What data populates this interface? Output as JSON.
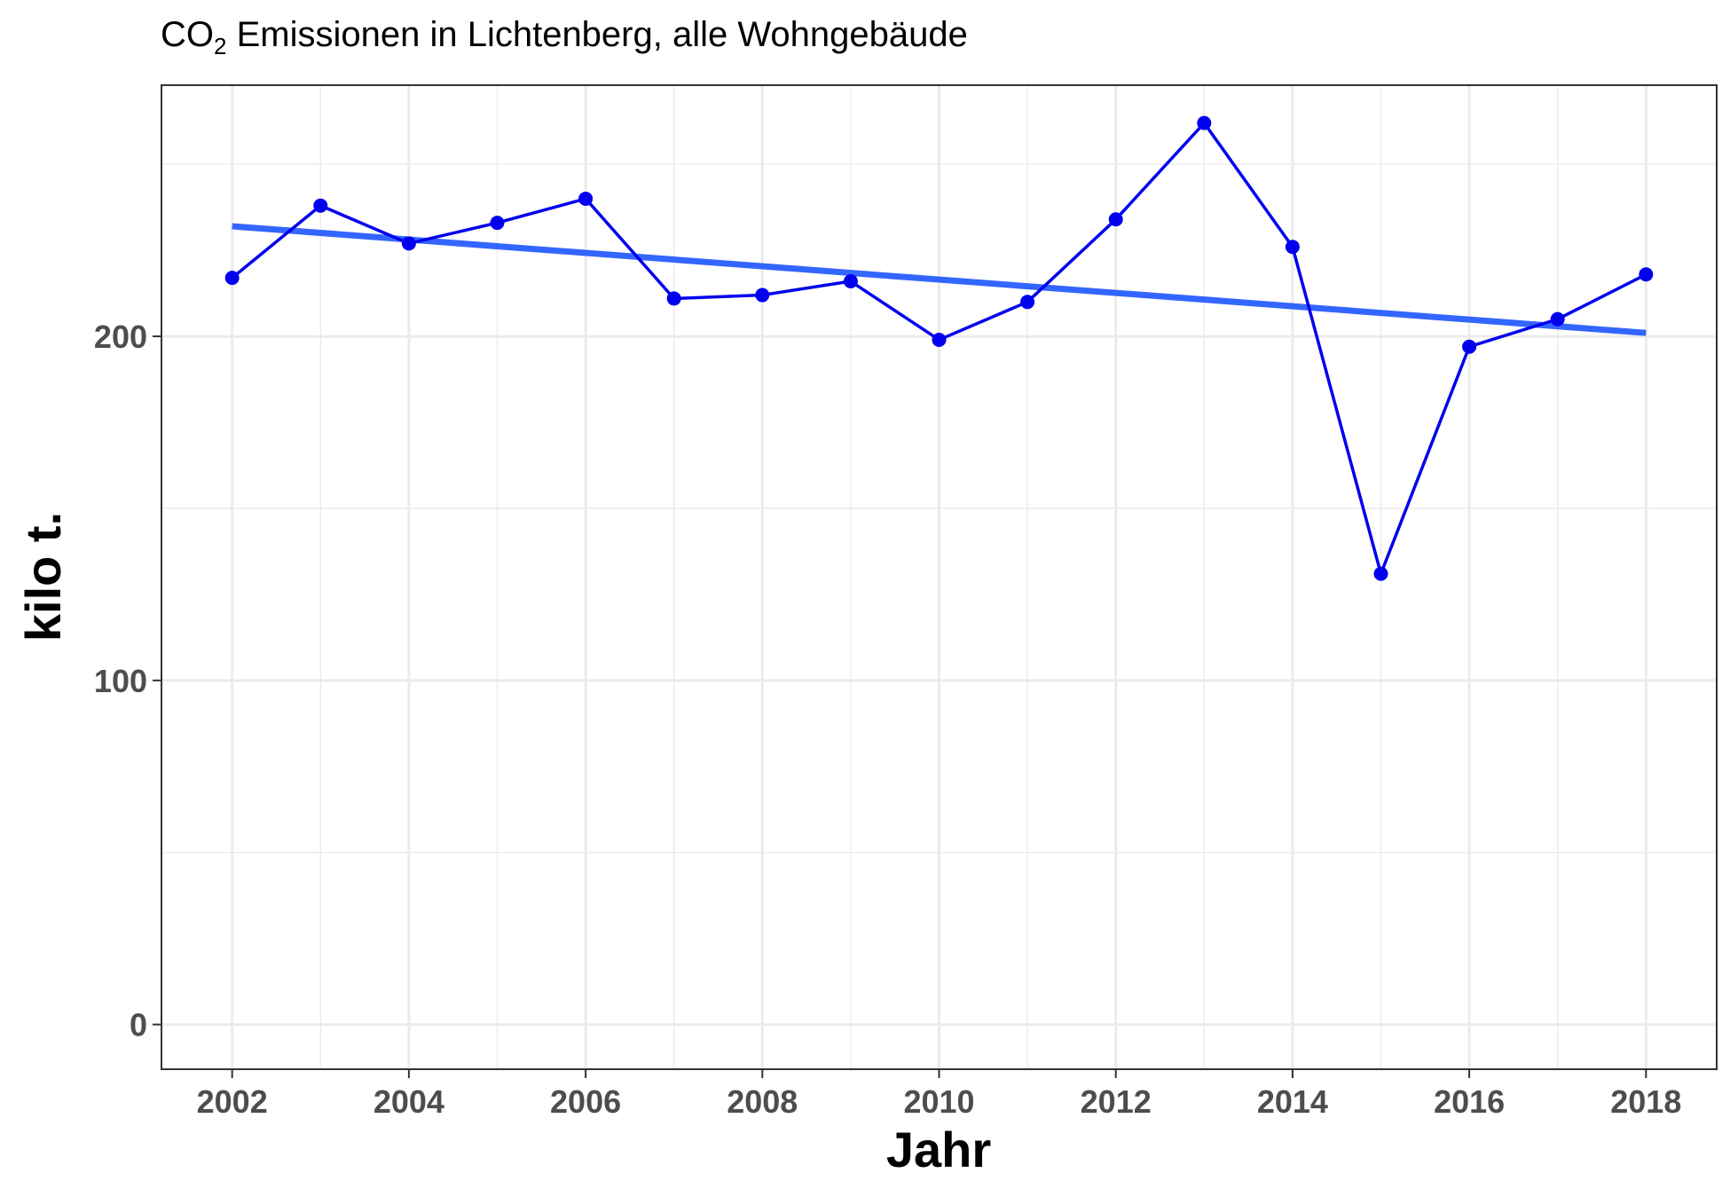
{
  "chart_data": {
    "type": "line",
    "title": {
      "prefix": "CO",
      "subscript": "2",
      "suffix": " Emissionen in Lichtenberg, alle Wohngebäude"
    },
    "xlabel": "Jahr",
    "ylabel": "kilo t.",
    "xlim": [
      2001.2,
      2018.8
    ],
    "ylim": [
      -13,
      273
    ],
    "x_ticks": [
      2002,
      2004,
      2006,
      2008,
      2010,
      2012,
      2014,
      2016,
      2018
    ],
    "x_tick_labels": [
      "2002",
      "2004",
      "2006",
      "2008",
      "2010",
      "2012",
      "2014",
      "2016",
      "2018"
    ],
    "y_ticks": [
      0,
      100,
      200
    ],
    "y_tick_labels": [
      "0",
      "100",
      "200"
    ],
    "grid": true,
    "colors": {
      "series": "#0000ee",
      "trend": "#3366ff"
    },
    "series": [
      {
        "x": [
          2002,
          2003,
          2004,
          2005,
          2006,
          2007,
          2008,
          2009,
          2010,
          2011,
          2012,
          2013,
          2014,
          2015,
          2016,
          2017,
          2018
        ],
        "values": [
          217,
          238,
          227,
          233,
          240,
          211,
          212,
          216,
          199,
          210,
          234,
          262,
          226,
          131,
          197,
          205,
          218
        ]
      }
    ],
    "trend_line": {
      "x": [
        2002,
        2018
      ],
      "values": [
        232,
        201
      ]
    }
  }
}
